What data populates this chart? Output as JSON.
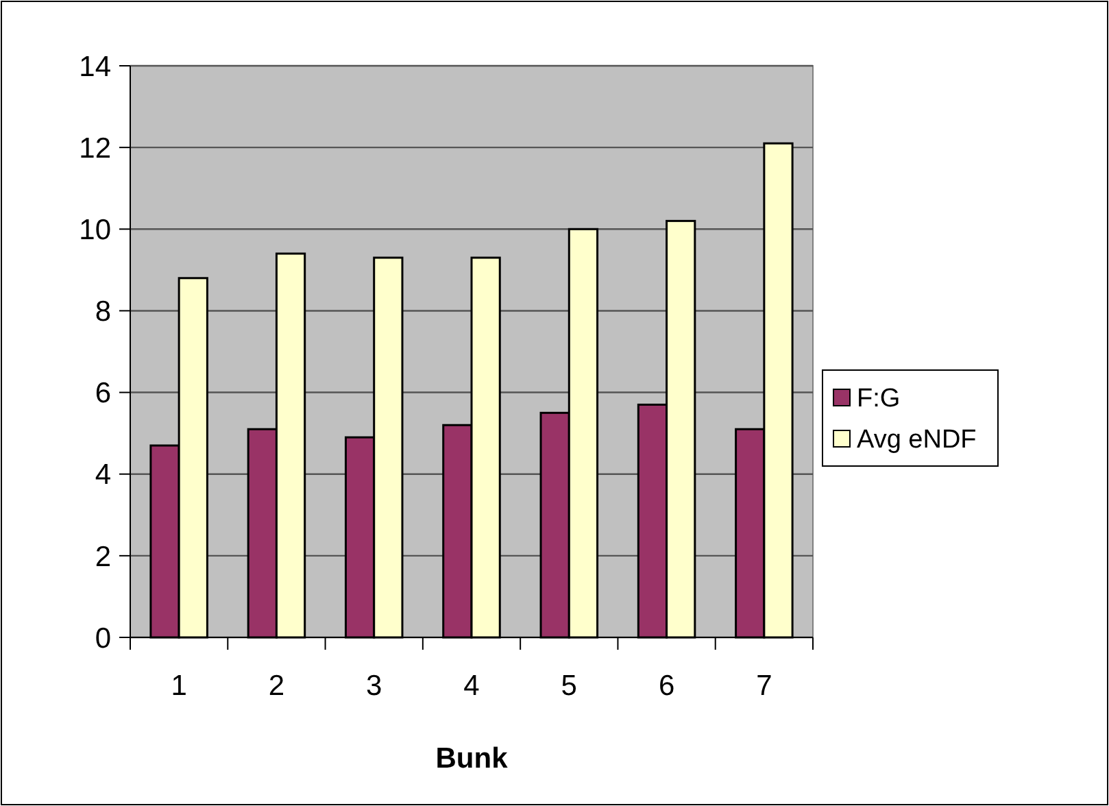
{
  "chart_data": {
    "type": "bar",
    "xlabel": "Bunk",
    "categories": [
      "1",
      "2",
      "3",
      "4",
      "5",
      "6",
      "7"
    ],
    "series": [
      {
        "name": "F:G",
        "color": "#993366",
        "values": [
          4.7,
          5.1,
          4.9,
          5.2,
          5.5,
          5.7,
          5.1
        ]
      },
      {
        "name": "Avg eNDF",
        "color": "#ffffcc",
        "values": [
          8.8,
          9.4,
          9.3,
          9.3,
          10.0,
          10.2,
          12.1
        ]
      }
    ],
    "ylim": [
      0,
      14
    ],
    "yticks": [
      0,
      2,
      4,
      6,
      8,
      10,
      12,
      14
    ],
    "grid": "y",
    "legend": "right"
  }
}
